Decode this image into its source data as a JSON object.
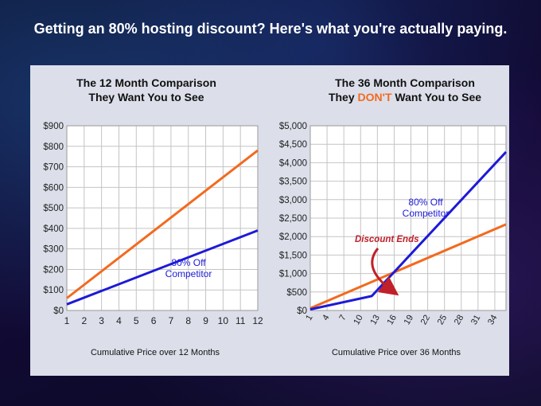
{
  "headline": "Getting an 80% hosting discount? Here's what you're actually paying.",
  "colors": {
    "orange": "#f26a1f",
    "blue": "#1d1ad6",
    "discount_red": "#c0202a",
    "grid": "#c4c4c4"
  },
  "brand_icon": "r-logo-icon",
  "chart_data": [
    {
      "type": "line",
      "title": [
        "The 12 Month Comparison",
        "They Want You to See"
      ],
      "xlabel": "Cumulative Price over 12 Months",
      "ylabel": "",
      "x_ticks": [
        "1",
        "2",
        "3",
        "4",
        "5",
        "6",
        "7",
        "8",
        "9",
        "10",
        "11",
        "12"
      ],
      "y_ticks": [
        "$0",
        "$100",
        "$200",
        "$300",
        "$400",
        "$500",
        "$600",
        "$700",
        "$800",
        "$900"
      ],
      "xlim": [
        1,
        12
      ],
      "ylim": [
        0,
        900
      ],
      "grid": true,
      "series": [
        {
          "color": "orange",
          "x": [
            1,
            12
          ],
          "y": [
            60,
            780
          ]
        },
        {
          "name": "80% Off Competitor",
          "name_lines": [
            "80% Off",
            "Competitor"
          ],
          "color": "blue",
          "x": [
            1,
            12
          ],
          "y": [
            30,
            390
          ]
        }
      ]
    },
    {
      "type": "line",
      "title": [
        "The 36 Month Comparison",
        "They ",
        "DON'T",
        " Want You to See"
      ],
      "xlabel": "Cumulative Price over 36 Months",
      "ylabel": "",
      "x_ticks": [
        "1",
        "4",
        "7",
        "10",
        "13",
        "16",
        "19",
        "22",
        "25",
        "28",
        "31",
        "34"
      ],
      "y_ticks": [
        "$0",
        "$500",
        "$1,000",
        "$1,500",
        "$2,000",
        "$2,500",
        "$3,000",
        "$3,500",
        "$4,000",
        "$4,500",
        "$5,000"
      ],
      "xlim": [
        1,
        36
      ],
      "ylim": [
        0,
        5000
      ],
      "grid": true,
      "annotation": "Discount Ends",
      "series": [
        {
          "color": "orange",
          "x": [
            1,
            36
          ],
          "y": [
            60,
            2330
          ]
        },
        {
          "name": "80% Off Competitor",
          "name_lines": [
            "80% Off",
            "Competitor"
          ],
          "color": "blue",
          "x": [
            1,
            12,
            36
          ],
          "y": [
            30,
            390,
            4290
          ]
        }
      ]
    }
  ]
}
